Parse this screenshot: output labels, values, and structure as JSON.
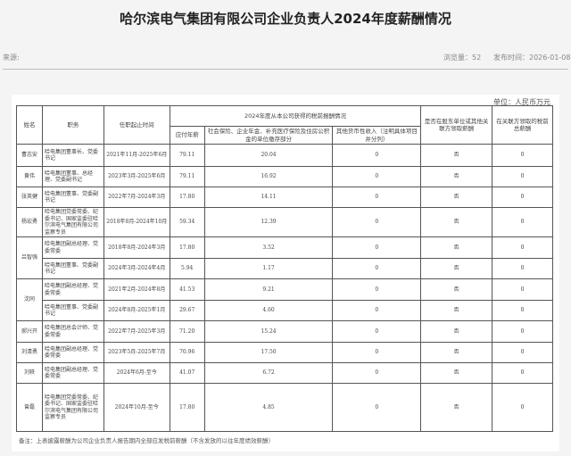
{
  "title": "哈尔滨电气集团有限公司企业负责人2024年度薪酬情况",
  "source_label": "来源:",
  "views": "浏览量：52",
  "published": "发布时间：2026-01-08",
  "unit": "单位：人民币万元",
  "headers": {
    "name": "姓名",
    "position": "职务",
    "term": "任职起止时间",
    "group": "2024年度从本公司获得的税前报酬情况",
    "salary": "应付年薪",
    "insurance": "社会保险、企业年金、补充医疗保险及住房公积金的单位缴存部分",
    "other": "其他货币性收入（注明具体项目并分列）",
    "shareholder": "是否在股东单位或其他关联方领取薪酬",
    "related": "在关联方领取的税前总薪酬"
  },
  "rows": [
    {
      "name": "曹志安",
      "position": "哈电集团董事长、党委书记",
      "term": "2021年11月-2025年6月",
      "salary": "79.11",
      "insurance": "20.04",
      "other": "0",
      "shareholder": "否",
      "related": "0"
    },
    {
      "name": "黄伟",
      "position": "哈电集团董事、总经理、党委副书记",
      "term": "2023年3月-2025年6月",
      "salary": "79.11",
      "insurance": "16.92",
      "other": "0",
      "shareholder": "否",
      "related": "0"
    },
    {
      "name": "张英健",
      "position": "哈电集团董事、党委副书记",
      "term": "2022年7月-2024年3月",
      "salary": "17.80",
      "insurance": "14.11",
      "other": "0",
      "shareholder": "否",
      "related": "0"
    },
    {
      "name": "杨宏勇",
      "position": "哈电集团党委常委、纪委书记、国家监委驻哈尔滨电气集团有限公司监察专员",
      "term": "2018年8月-2024年10月",
      "salary": "59.34",
      "insurance": "12.39",
      "other": "0",
      "shareholder": "否",
      "related": "0"
    },
    {
      "name": "吕智强",
      "position": "哈电集团副总经理、党委常委",
      "term": "2018年8月-2024年3月",
      "salary": "17.80",
      "insurance": "3.52",
      "other": "0",
      "shareholder": "否",
      "related": "0"
    },
    {
      "name": "",
      "position": "哈电集团董事、党委副书记",
      "term": "2024年3月-2024年4月",
      "salary": "5.94",
      "insurance": "1.17",
      "other": "0",
      "shareholder": "否",
      "related": "0"
    },
    {
      "name": "沈同",
      "position": "哈电集团副总经理、党委常委",
      "term": "2021年2月-2024年8月",
      "salary": "41.53",
      "insurance": "9.21",
      "other": "0",
      "shareholder": "否",
      "related": "0"
    },
    {
      "name": "",
      "position": "哈电集团董事、党委副书记",
      "term": "2024年8月-2025年1月",
      "salary": "29.67",
      "insurance": "4.60",
      "other": "0",
      "shareholder": "否",
      "related": "0"
    },
    {
      "name": "郝兴开",
      "position": "哈电集团总会计师、党委常委",
      "term": "2022年7月-2025年3月",
      "salary": "71.20",
      "insurance": "15.24",
      "other": "0",
      "shareholder": "否",
      "related": "0"
    },
    {
      "name": "刘清勇",
      "position": "哈电集团副总经理、党委常委",
      "term": "2023年5月-2025年7月",
      "salary": "70.96",
      "insurance": "17.50",
      "other": "0",
      "shareholder": "否",
      "related": "0"
    },
    {
      "name": "刘轶",
      "position": "哈电集团副总经理、党委常委",
      "term": "2024年6月-至今",
      "salary": "41.07",
      "insurance": "6.72",
      "other": "0",
      "shareholder": "否",
      "related": "0"
    },
    {
      "name": "曾磊",
      "position": "哈电集团党委常委、纪委书记、国家监委驻哈尔滨电气集团有限公司监察专员",
      "term": "2024年10月-至今",
      "salary": "17.80",
      "insurance": "4.85",
      "other": "0",
      "shareholder": "否",
      "related": "0"
    }
  ],
  "note": "备注：上表披露薪酬为公司企业负责人报告期内全部应发税前薪酬（不含发放的以往年度绩效薪酬）"
}
